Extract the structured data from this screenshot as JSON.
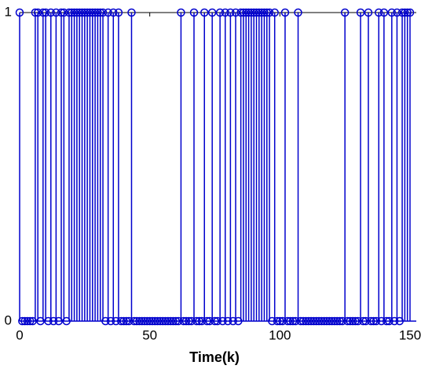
{
  "chart_data": {
    "type": "stem",
    "x_label": "Time(k)",
    "color": "#0000cd",
    "xlim": [
      0,
      150
    ],
    "xticks": [
      0,
      50,
      100,
      150
    ],
    "ylim": [
      0,
      1
    ],
    "yticks": [
      0,
      1
    ],
    "x": [
      0,
      1,
      2,
      3,
      4,
      5,
      6,
      7,
      8,
      9,
      10,
      11,
      12,
      13,
      14,
      15,
      16,
      17,
      18,
      19,
      20,
      21,
      22,
      23,
      24,
      25,
      26,
      27,
      28,
      29,
      30,
      31,
      32,
      33,
      34,
      35,
      36,
      37,
      38,
      39,
      40,
      41,
      42,
      43,
      44,
      45,
      46,
      47,
      48,
      49,
      50,
      51,
      52,
      53,
      54,
      55,
      56,
      57,
      58,
      59,
      60,
      61,
      62,
      63,
      64,
      65,
      66,
      67,
      68,
      69,
      70,
      71,
      72,
      73,
      74,
      75,
      76,
      77,
      78,
      79,
      80,
      81,
      82,
      83,
      84,
      85,
      86,
      87,
      88,
      89,
      90,
      91,
      92,
      93,
      94,
      95,
      96,
      97,
      98,
      99,
      100,
      101,
      102,
      103,
      104,
      105,
      106,
      107,
      108,
      109,
      110,
      111,
      112,
      113,
      114,
      115,
      116,
      117,
      118,
      119,
      120,
      121,
      122,
      123,
      124,
      125,
      126,
      127,
      128,
      129,
      130,
      131,
      132,
      133,
      134,
      135,
      136,
      137,
      138,
      139,
      140,
      141,
      142,
      143,
      144,
      145,
      146,
      147,
      148,
      149,
      150
    ],
    "values": [
      1,
      0,
      0,
      0,
      0,
      0,
      1,
      1,
      0,
      1,
      1,
      0,
      1,
      0,
      1,
      0,
      1,
      1,
      0,
      1,
      1,
      1,
      1,
      1,
      1,
      1,
      1,
      1,
      1,
      1,
      1,
      1,
      1,
      0,
      1,
      0,
      1,
      0,
      1,
      0,
      0,
      0,
      0,
      1,
      0,
      0,
      0,
      0,
      0,
      0,
      0,
      0,
      0,
      0,
      0,
      0,
      0,
      0,
      0,
      0,
      0,
      0,
      1,
      0,
      0,
      0,
      0,
      1,
      0,
      0,
      0,
      1,
      0,
      0,
      1,
      0,
      0,
      1,
      0,
      1,
      0,
      1,
      0,
      1,
      0,
      1,
      1,
      1,
      1,
      1,
      1,
      1,
      1,
      1,
      1,
      1,
      1,
      0,
      1,
      0,
      0,
      0,
      1,
      0,
      0,
      0,
      0,
      1,
      0,
      0,
      0,
      0,
      0,
      0,
      0,
      0,
      0,
      0,
      0,
      0,
      0,
      0,
      0,
      0,
      0,
      1,
      0,
      0,
      0,
      0,
      0,
      1,
      0,
      0,
      1,
      0,
      0,
      0,
      1,
      0,
      1,
      0,
      0,
      1,
      0,
      1,
      0,
      1,
      1,
      1,
      1
    ]
  }
}
